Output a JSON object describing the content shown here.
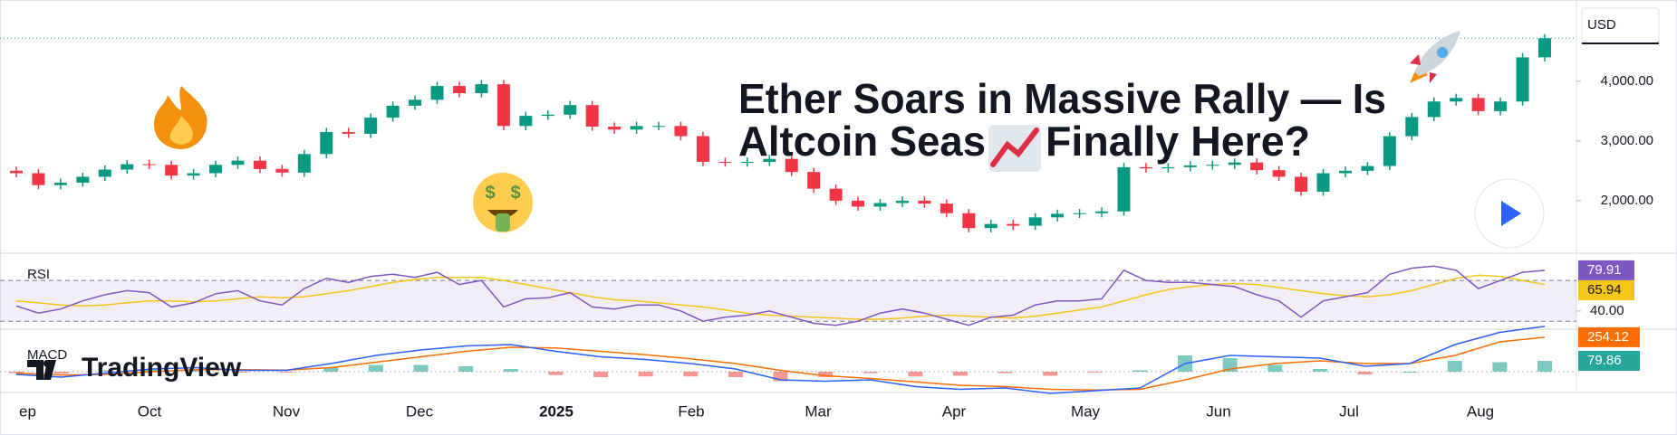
{
  "overlay": {
    "headline": [
      "Ether Soars in Massive Rally — Is",
      "Altcoin Seas",
      "Finally Here?"
    ],
    "brand": "TradingView"
  },
  "chart_data": {
    "type": "candlestick",
    "currency": "USD",
    "up_color": "#089981",
    "down_color": "#f23645",
    "x_labels": [
      "ep",
      "Oct",
      "Nov",
      "Dec",
      "2025",
      "Feb",
      "Mar",
      "Apr",
      "May",
      "Jun",
      "Jul",
      "Aug"
    ],
    "open": [
      2500,
      2460,
      2260,
      2300,
      2400,
      2520,
      2610,
      2600,
      2420,
      2460,
      2600,
      2670,
      2530,
      2470,
      2780,
      3150,
      3120,
      3390,
      3590,
      3690,
      3920,
      3800,
      3950,
      3250,
      3420,
      3440,
      3600,
      3240,
      3190,
      3250,
      3250,
      3080,
      2650,
      2640,
      2650,
      2700,
      2480,
      2200,
      2000,
      1900,
      1960,
      2000,
      1950,
      1790,
      1540,
      1610,
      1580,
      1720,
      1780,
      1790,
      1820,
      2560,
      2540,
      2560,
      2590,
      2600,
      2640,
      2510,
      2400,
      2150,
      2460,
      2500,
      2580,
      3080,
      3400,
      3660,
      3720,
      3500,
      3660,
      4400
    ],
    "high": [
      2570,
      2530,
      2370,
      2470,
      2590,
      2680,
      2680,
      2670,
      2530,
      2670,
      2740,
      2740,
      2600,
      2850,
      3220,
      3220,
      3460,
      3660,
      3760,
      3990,
      3990,
      4020,
      4020,
      3490,
      3510,
      3670,
      3670,
      3310,
      3320,
      3320,
      3320,
      3150,
      2720,
      2720,
      2770,
      2770,
      2550,
      2270,
      2070,
      2030,
      2070,
      2070,
      2020,
      1860,
      1680,
      1680,
      1790,
      1850,
      1860,
      1890,
      2630,
      2630,
      2630,
      2660,
      2670,
      2710,
      2710,
      2580,
      2470,
      2530,
      2570,
      2650,
      3150,
      3470,
      3730,
      3790,
      3790,
      3730,
      4470,
      4790
    ],
    "low": [
      2390,
      2190,
      2190,
      2230,
      2330,
      2450,
      2530,
      2350,
      2350,
      2390,
      2530,
      2460,
      2400,
      2400,
      2710,
      3050,
      3050,
      3320,
      3520,
      3620,
      3730,
      3730,
      3180,
      3180,
      3350,
      3370,
      3170,
      3120,
      3120,
      3180,
      3010,
      2580,
      2570,
      2570,
      2580,
      2410,
      2130,
      1930,
      1830,
      1830,
      1890,
      1880,
      1720,
      1470,
      1470,
      1510,
      1510,
      1650,
      1710,
      1720,
      1750,
      2470,
      2470,
      2490,
      2520,
      2530,
      2440,
      2330,
      2080,
      2080,
      2390,
      2430,
      2510,
      3010,
      3330,
      3590,
      3430,
      3430,
      3590,
      4330
    ],
    "close": [
      2460,
      2260,
      2300,
      2400,
      2520,
      2610,
      2600,
      2420,
      2460,
      2600,
      2670,
      2530,
      2470,
      2780,
      3150,
      3120,
      3390,
      3590,
      3690,
      3920,
      3800,
      3950,
      3250,
      3420,
      3440,
      3600,
      3240,
      3190,
      3250,
      3250,
      3080,
      2650,
      2640,
      2650,
      2700,
      2480,
      2200,
      2000,
      1900,
      1960,
      2000,
      1950,
      1790,
      1540,
      1610,
      1580,
      1720,
      1780,
      1790,
      1820,
      2560,
      2540,
      2560,
      2590,
      2600,
      2640,
      2510,
      2400,
      2150,
      2460,
      2500,
      2580,
      3080,
      3400,
      3660,
      3720,
      3500,
      3660,
      4400,
      4720
    ],
    "ylim": [
      1150,
      5360
    ],
    "yticks": [
      {
        "value": 2000,
        "label": "2,000.00"
      },
      {
        "value": 3000,
        "label": "3,000.00"
      },
      {
        "value": 4000,
        "label": "4,000.00"
      }
    ],
    "rsi": {
      "label": "RSI",
      "color": "#7e57c2",
      "ma_color": "#f5c518",
      "ylim": [
        24,
        94
      ],
      "bands": [
        30,
        70
      ],
      "yticks": [
        {
          "value": 40,
          "label": "40.00"
        }
      ],
      "values": [
        45,
        38,
        42,
        50,
        56,
        60,
        58,
        44,
        48,
        57,
        60,
        50,
        46,
        62,
        72,
        68,
        74,
        76,
        73,
        78,
        66,
        70,
        44,
        52,
        53,
        58,
        44,
        42,
        46,
        46,
        40,
        30,
        34,
        36,
        40,
        34,
        28,
        26,
        30,
        38,
        42,
        38,
        32,
        26,
        34,
        36,
        46,
        50,
        50,
        52,
        80,
        70,
        68,
        68,
        66,
        64,
        56,
        50,
        34,
        50,
        54,
        58,
        76,
        82,
        84,
        80,
        62,
        70,
        78,
        79.91
      ],
      "ma": [
        50,
        48,
        46,
        45,
        46,
        48,
        50,
        50,
        49,
        50,
        52,
        54,
        53,
        54,
        57,
        60,
        64,
        68,
        71,
        73,
        73,
        73,
        70,
        66,
        62,
        58,
        54,
        51,
        50,
        48,
        46,
        44,
        41,
        38,
        36,
        35,
        34,
        33,
        32,
        32,
        33,
        35,
        36,
        35,
        34,
        33,
        35,
        38,
        41,
        44,
        50,
        56,
        61,
        64,
        66,
        67,
        66,
        63,
        60,
        57,
        55,
        54,
        56,
        60,
        66,
        72,
        75,
        74,
        70,
        65.94
      ]
    },
    "macd": {
      "label": "MACD",
      "macd_color": "#2962ff",
      "signal_color": "#ff6d00",
      "hist_color": "#26a69a",
      "ylim": [
        -140,
        300
      ],
      "macd": [
        -20,
        -40,
        -10,
        20,
        30,
        10,
        10,
        60,
        120,
        160,
        190,
        200,
        150,
        110,
        90,
        60,
        20,
        -60,
        -70,
        -60,
        -110,
        -130,
        -120,
        -160,
        -140,
        -120,
        60,
        120,
        110,
        100,
        40,
        60,
        200,
        290,
        333.98
      ],
      "signal": [
        -10,
        -25,
        -20,
        0,
        15,
        15,
        12,
        30,
        70,
        110,
        150,
        180,
        175,
        150,
        125,
        95,
        60,
        10,
        -30,
        -50,
        -75,
        -100,
        -110,
        -130,
        -135,
        -130,
        -60,
        20,
        60,
        80,
        60,
        60,
        120,
        220,
        254.12
      ],
      "hist": [
        -10,
        -15,
        10,
        20,
        15,
        -5,
        -2,
        30,
        50,
        50,
        40,
        20,
        -25,
        -40,
        -35,
        -35,
        -40,
        -70,
        -40,
        -10,
        -35,
        -30,
        -10,
        -30,
        -5,
        10,
        120,
        100,
        50,
        20,
        -20,
        0,
        80,
        70,
        79.86
      ]
    }
  }
}
